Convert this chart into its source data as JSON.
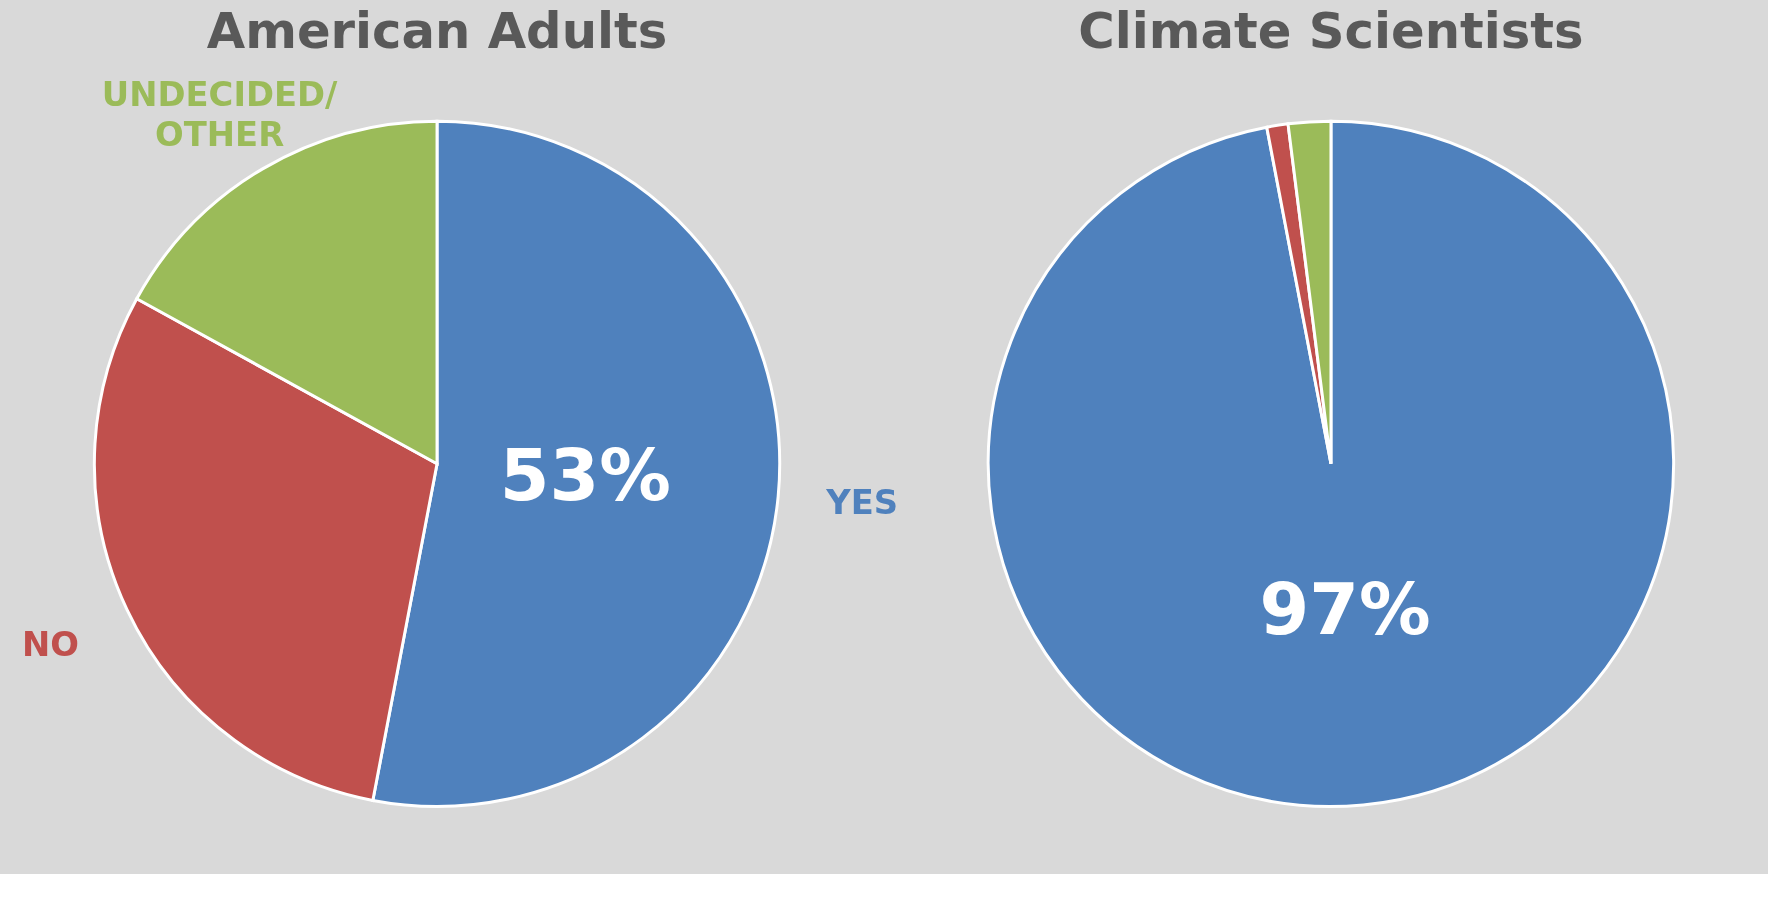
{
  "chart_data": [
    {
      "type": "pie",
      "title": "American Adults",
      "categories": [
        "YES",
        "NO",
        "UNDECIDED/ OTHER"
      ],
      "values": [
        53,
        30,
        17
      ],
      "colors": [
        "#4f81bd",
        "#c0504d",
        "#9bbb59"
      ],
      "value_labels": [
        "53%",
        null,
        null
      ]
    },
    {
      "type": "pie",
      "title": "Climate Scientists",
      "categories": [
        null,
        null,
        null
      ],
      "values": [
        97,
        1,
        2
      ],
      "colors": [
        "#4f81bd",
        "#c0504d",
        "#9bbb59"
      ],
      "value_labels": [
        "97%",
        null,
        null
      ]
    }
  ]
}
